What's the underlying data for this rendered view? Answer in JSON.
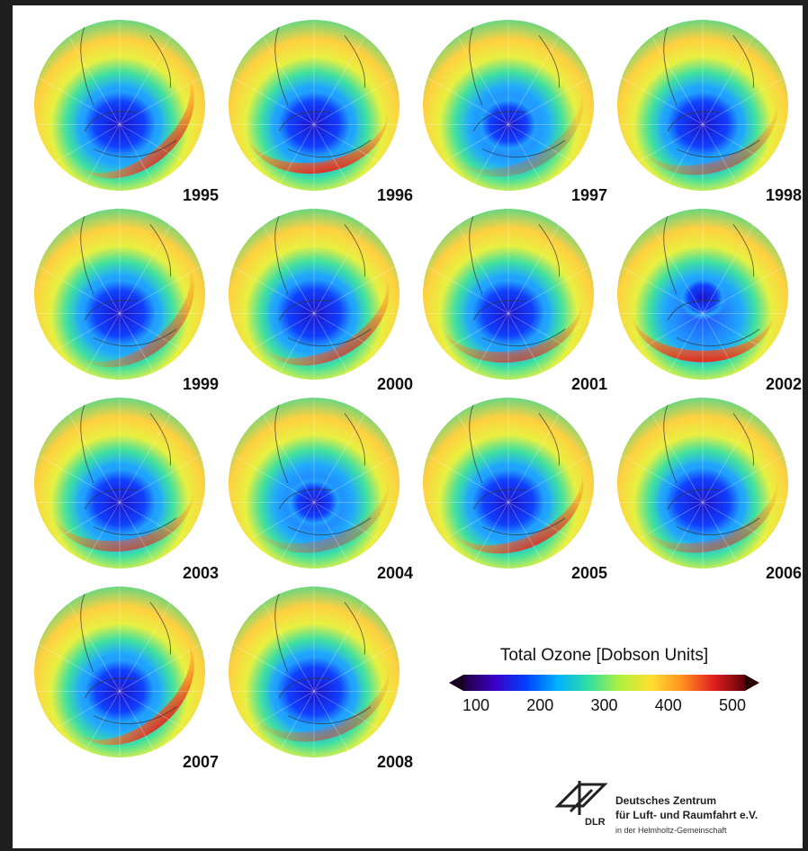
{
  "maps": [
    {
      "year": "1995",
      "hole": 1.0,
      "hole_lat": 0.0,
      "ring": 0.85,
      "ring_angle": 40
    },
    {
      "year": "1996",
      "hole": 1.0,
      "hole_lat": 0.0,
      "ring": 0.95,
      "ring_angle": 10
    },
    {
      "year": "1997",
      "hole": 0.75,
      "hole_lat": 0.0,
      "ring": 0.35,
      "ring_angle": 30
    },
    {
      "year": "1998",
      "hole": 1.0,
      "hole_lat": 0.0,
      "ring": 0.55,
      "ring_angle": 20
    },
    {
      "year": "1999",
      "hole": 1.0,
      "hole_lat": 0.0,
      "ring": 0.6,
      "ring_angle": 40
    },
    {
      "year": "2000",
      "hole": 1.05,
      "hole_lat": 0.0,
      "ring": 0.75,
      "ring_angle": 30
    },
    {
      "year": "2001",
      "hole": 1.0,
      "hole_lat": 0.0,
      "ring": 0.7,
      "ring_angle": 10
    },
    {
      "year": "2002",
      "hole": 0.55,
      "hole_lat": -0.3,
      "ring": 1.0,
      "ring_angle": 0
    },
    {
      "year": "2003",
      "hole": 1.0,
      "hole_lat": 0.0,
      "ring": 0.7,
      "ring_angle": 10
    },
    {
      "year": "2004",
      "hole": 0.65,
      "hole_lat": 0.0,
      "ring": 0.4,
      "ring_angle": 20
    },
    {
      "year": "2005",
      "hole": 1.0,
      "hole_lat": 0.0,
      "ring": 0.85,
      "ring_angle": 25
    },
    {
      "year": "2006",
      "hole": 1.05,
      "hole_lat": 0.0,
      "ring": 0.55,
      "ring_angle": 20
    },
    {
      "year": "2007",
      "hole": 0.95,
      "hole_lat": 0.0,
      "ring": 0.95,
      "ring_angle": 40
    },
    {
      "year": "2008",
      "hole": 1.05,
      "hole_lat": 0.0,
      "ring": 0.5,
      "ring_angle": 20
    }
  ],
  "legend": {
    "title": "Total Ozone [Dobson Units]",
    "ticks": [
      "100",
      "200",
      "300",
      "400",
      "500"
    ],
    "colors": [
      "#20003a",
      "#3b00c8",
      "#0040ff",
      "#00b0ff",
      "#30e0a0",
      "#b0f040",
      "#ffe030",
      "#ff9020",
      "#e02020",
      "#600008"
    ]
  },
  "logo": {
    "acronym": "DLR",
    "line1": "Deutsches Zentrum",
    "line2": "für Luft- und Raumfahrt e.V.",
    "line3": "in der Helmholtz-Gemeinschaft"
  }
}
